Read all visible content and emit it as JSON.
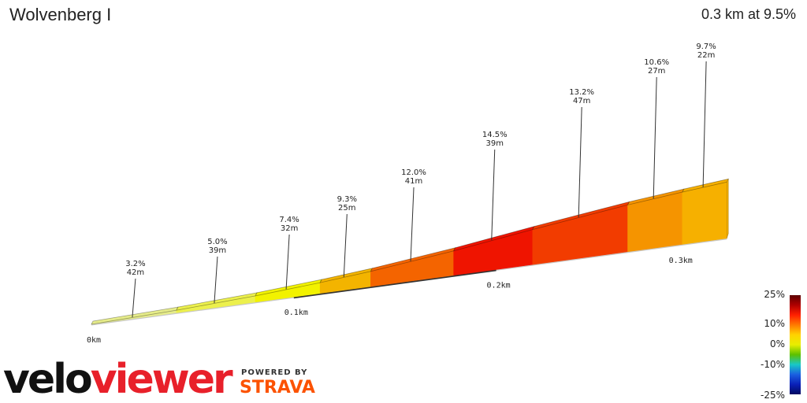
{
  "title": "Wolvenberg I",
  "summary": "0.3 km at 9.5%",
  "logo": {
    "part1": "velo",
    "part2": "viewer",
    "powered_by": "POWERED BY",
    "strava": "STRAVA"
  },
  "chart_data": {
    "type": "area",
    "title": "Wolvenberg I",
    "xlabel": "",
    "ylabel": "",
    "total_distance_km": 0.3,
    "average_gradient_percent": 9.5,
    "distance_ticks": [
      "0km",
      "0.1km",
      "0.2km",
      "0.3km"
    ],
    "segments": [
      {
        "gradient": "3.2%",
        "length": "42m",
        "gradient_value": 3.2,
        "length_m": 42,
        "color": "#e6ec8a"
      },
      {
        "gradient": "5.0%",
        "length": "39m",
        "gradient_value": 5.0,
        "length_m": 39,
        "color": "#ecf04c"
      },
      {
        "gradient": "7.4%",
        "length": "32m",
        "gradient_value": 7.4,
        "length_m": 32,
        "color": "#f2f200"
      },
      {
        "gradient": "9.3%",
        "length": "25m",
        "gradient_value": 9.3,
        "length_m": 25,
        "color": "#f3b400"
      },
      {
        "gradient": "12.0%",
        "length": "41m",
        "gradient_value": 12.0,
        "length_m": 41,
        "color": "#f46400"
      },
      {
        "gradient": "14.5%",
        "length": "39m",
        "gradient_value": 14.5,
        "length_m": 39,
        "color": "#ef1400"
      },
      {
        "gradient": "13.2%",
        "length": "47m",
        "gradient_value": 13.2,
        "length_m": 47,
        "color": "#f23c00"
      },
      {
        "gradient": "10.6%",
        "length": "27m",
        "gradient_value": 10.6,
        "length_m": 27,
        "color": "#f59400"
      },
      {
        "gradient": "9.7%",
        "length": "22m",
        "gradient_value": 9.7,
        "length_m": 22,
        "color": "#f6b000"
      }
    ]
  },
  "color_scale": {
    "labels": [
      "25%",
      "10%",
      "0%",
      "-10%",
      "-25%"
    ],
    "values": [
      25,
      10,
      0,
      -10,
      -25
    ],
    "colors": [
      "#5c0000",
      "#b00000",
      "#ff2000",
      "#ff7a00",
      "#ffd200",
      "#e8ee00",
      "#5cc000",
      "#18c8c8",
      "#1a60e0",
      "#0a20b8",
      "#000a60"
    ]
  }
}
